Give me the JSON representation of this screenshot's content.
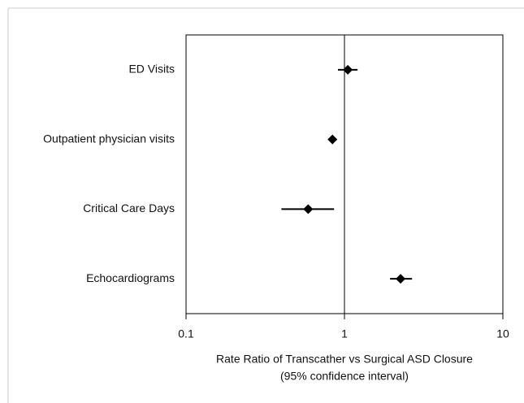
{
  "chart_data": {
    "type": "forest",
    "categories": [
      "ED Visits",
      "Outpatient physician visits",
      "Critical Care Days",
      "Echocardiograms"
    ],
    "values": [
      1.05,
      0.84,
      0.59,
      2.26
    ],
    "lower": [
      0.91,
      null,
      0.4,
      1.94
    ],
    "upper": [
      1.21,
      null,
      0.86,
      2.67
    ],
    "color": "#000000",
    "xlim": [
      0.1,
      10
    ],
    "xticks": [
      0.1,
      1,
      10
    ],
    "log_x": true,
    "reference_line": 1,
    "xlabel": [
      "Rate Ratio of Transcather vs Surgical ASD Closure",
      "(95% confidence interval)"
    ]
  }
}
